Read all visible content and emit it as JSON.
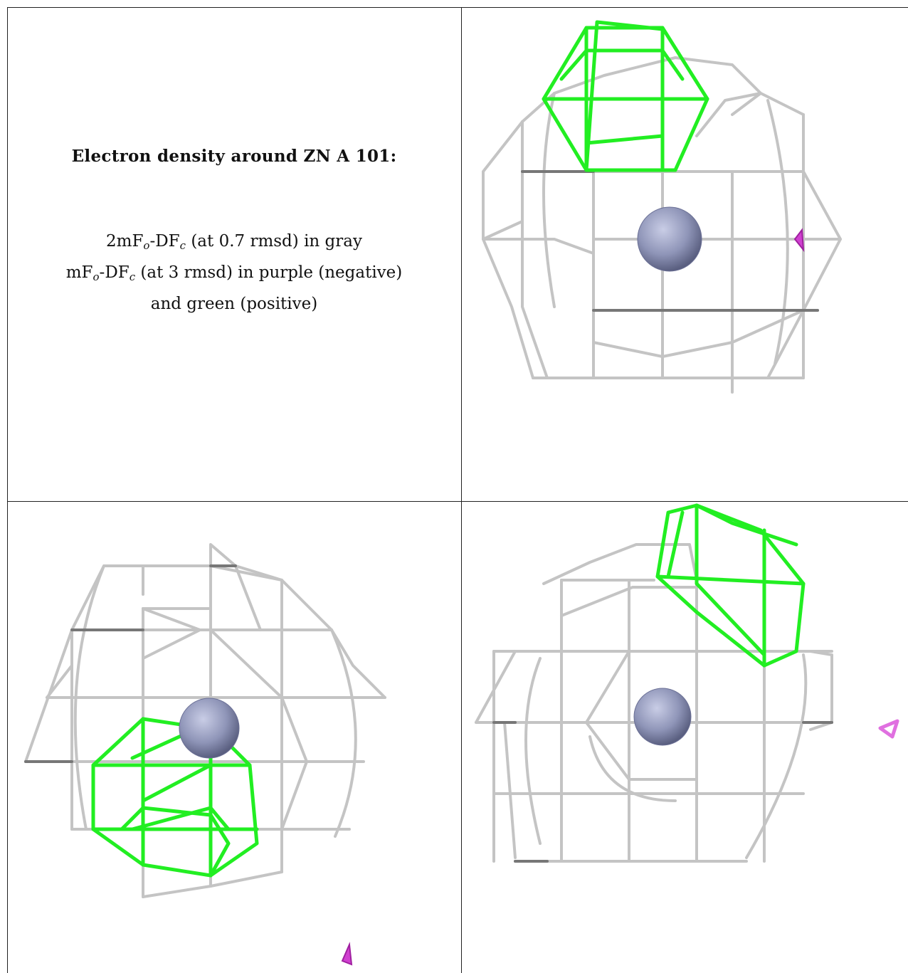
{
  "caption": {
    "title": "Electron density around ZN A 101:",
    "line1_lead": "2mF",
    "line1_sub_o": "o",
    "line1_mid": "-DF",
    "line1_sub_c": "c",
    "line1_tail": " (at 0.7 rmsd) in gray",
    "line2_lead": "mF",
    "line2_sub_o": "o",
    "line2_mid": "-DF",
    "line2_sub_c": "c",
    "line2_tail": " (at 3 rmsd) in purple (negative)",
    "line3": "and green (positive)"
  },
  "colors": {
    "map_2fofc": "#c4c4c4",
    "map_fofc_positive": "#22ee22",
    "map_fofc_negative": "#d040d0",
    "zinc_atom": "#8f95b8"
  },
  "panels": [
    {
      "name": "view-1",
      "positive_density": "top",
      "negative_density": "right"
    },
    {
      "name": "view-2",
      "positive_density": "bottom-left",
      "negative_density": "bottom-right"
    },
    {
      "name": "view-3",
      "positive_density": "top-right",
      "negative_density": "right"
    }
  ]
}
